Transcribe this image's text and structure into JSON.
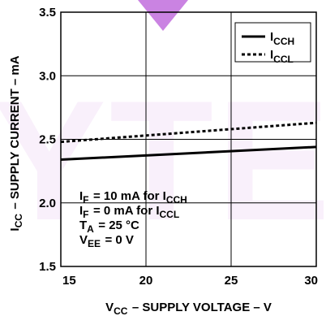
{
  "watermark": {
    "text": "YTE",
    "color": "#b85ad8"
  },
  "chart_data": {
    "type": "line",
    "xlabel": "V_CC – SUPPLY VOLTAGE – V",
    "ylabel": "I_CC – SUPPLY CURRENT – mA",
    "xlim": [
      15,
      30
    ],
    "ylim": [
      1.5,
      3.5
    ],
    "x_ticks": [
      "15",
      "20",
      "25",
      "30"
    ],
    "y_ticks": [
      "1.5",
      "2.0",
      "2.5",
      "3.0",
      "3.5"
    ],
    "grid": true,
    "legend_position": "top-right",
    "series": [
      {
        "name": "I_CCH",
        "style": "solid",
        "x": [
          15,
          30
        ],
        "y": [
          2.34,
          2.44
        ]
      },
      {
        "name": "I_CCL",
        "style": "dotted",
        "x": [
          15,
          30
        ],
        "y": [
          2.48,
          2.63
        ]
      }
    ],
    "annotations": [
      "I_F = 10 mA for I_CCH",
      "I_F = 0 mA for I_CCL",
      "T_A = 25 °C",
      "V_EE = 0 V"
    ]
  }
}
